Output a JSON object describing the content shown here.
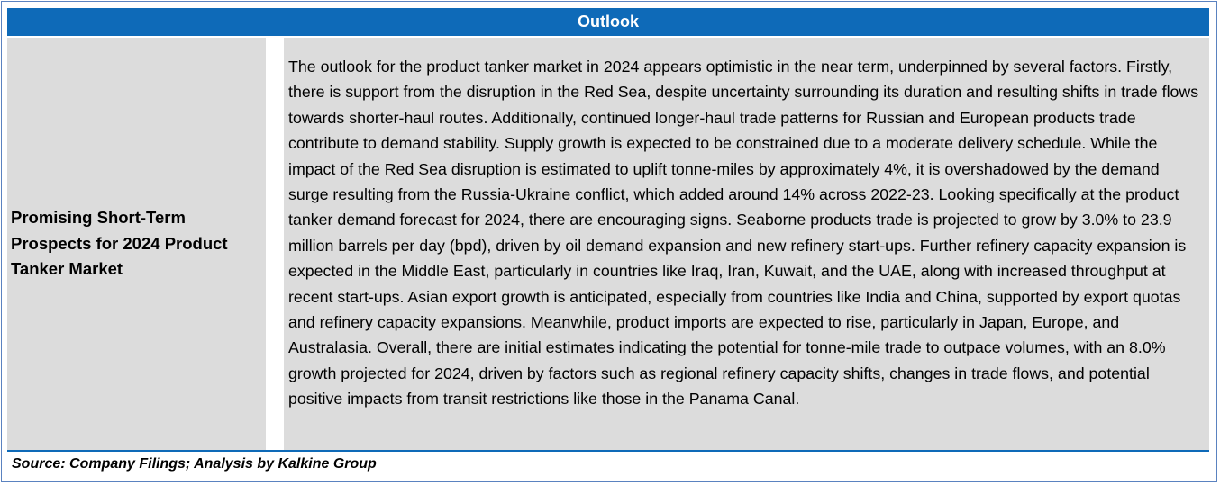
{
  "header": {
    "title": "Outlook"
  },
  "section": {
    "title": "Promising Short-Term Prospects for 2024 Product Tanker Market",
    "body": "The outlook for the product tanker market in 2024 appears optimistic in the near term, underpinned by several factors. Firstly, there is support from the disruption in the Red Sea, despite uncertainty surrounding its duration and resulting shifts in trade flows towards shorter-haul routes. Additionally, continued longer-haul trade patterns for Russian and European products trade contribute to demand stability. Supply growth is expected to be constrained due to a moderate delivery schedule. While the impact of the Red Sea disruption is estimated to uplift tonne-miles by approximately 4%, it is overshadowed by the demand surge resulting from the Russia-Ukraine conflict, which added around 14% across 2022-23. Looking specifically at the product tanker demand forecast for 2024, there are encouraging signs. Seaborne products trade is projected to grow by 3.0% to 23.9 million barrels per day (bpd), driven by oil demand expansion and new refinery start-ups. Further refinery capacity expansion is expected in the Middle East, particularly in countries like Iraq, Iran, Kuwait, and the UAE, along with increased throughput at recent start-ups. Asian export growth is anticipated, especially from countries like India and China, supported by export quotas and refinery capacity expansions. Meanwhile, product imports are expected to rise, particularly in Japan, Europe, and Australasia. Overall, there are initial estimates indicating the potential for tonne-mile trade to outpace volumes, with an 8.0% growth projected for 2024, driven by factors such as regional refinery capacity shifts, changes in trade flows, and potential positive impacts from transit restrictions like those in the Panama Canal."
  },
  "footer": {
    "source": "Source: Company Filings; Analysis by Kalkine Group"
  },
  "colors": {
    "header_bg": "#0e6ab8",
    "cell_bg": "#dcdcdc",
    "border": "#5a82c0"
  }
}
